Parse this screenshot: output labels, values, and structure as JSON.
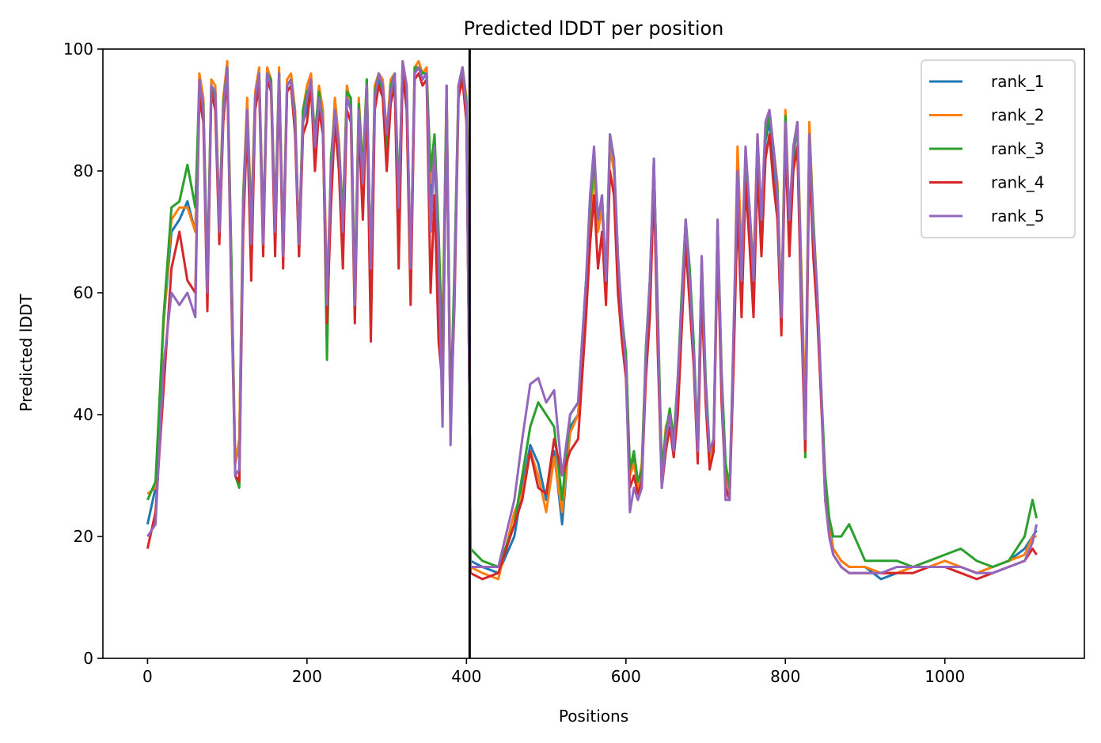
{
  "chart_data": {
    "type": "line",
    "title": "Predicted lDDT per position",
    "xlabel": "Positions",
    "ylabel": "Predicted lDDT",
    "xlim": [
      -56,
      1175
    ],
    "ylim": [
      0,
      100
    ],
    "xticks": [
      0,
      200,
      400,
      600,
      800,
      1000
    ],
    "yticks": [
      0,
      20,
      40,
      60,
      80,
      100
    ],
    "grid": false,
    "legend": "top-right",
    "vertical_line_x": 404,
    "x": [
      0,
      10,
      20,
      30,
      40,
      50,
      60,
      65,
      70,
      75,
      80,
      85,
      90,
      95,
      100,
      105,
      110,
      115,
      120,
      125,
      130,
      135,
      140,
      145,
      150,
      155,
      160,
      165,
      170,
      175,
      180,
      185,
      190,
      195,
      200,
      205,
      210,
      215,
      220,
      225,
      230,
      235,
      240,
      245,
      250,
      255,
      260,
      265,
      270,
      275,
      280,
      285,
      290,
      295,
      300,
      305,
      310,
      315,
      320,
      325,
      330,
      335,
      340,
      345,
      350,
      355,
      360,
      365,
      370,
      375,
      380,
      385,
      390,
      395,
      400,
      404,
      405,
      420,
      440,
      460,
      470,
      480,
      490,
      500,
      510,
      520,
      530,
      540,
      550,
      555,
      560,
      565,
      570,
      575,
      580,
      585,
      590,
      595,
      600,
      605,
      610,
      615,
      620,
      625,
      630,
      635,
      640,
      645,
      650,
      655,
      660,
      665,
      670,
      675,
      680,
      685,
      690,
      695,
      700,
      705,
      710,
      715,
      720,
      725,
      730,
      735,
      740,
      745,
      750,
      755,
      760,
      765,
      770,
      775,
      780,
      785,
      790,
      795,
      800,
      805,
      810,
      815,
      820,
      825,
      830,
      835,
      840,
      845,
      850,
      855,
      860,
      870,
      880,
      900,
      920,
      940,
      960,
      980,
      1000,
      1020,
      1040,
      1060,
      1080,
      1100,
      1110,
      1115
    ],
    "series": [
      {
        "name": "rank_1",
        "color": "#1f77b4",
        "values": [
          22,
          28,
          55,
          70,
          72,
          75,
          70,
          94,
          90,
          60,
          94,
          92,
          70,
          90,
          97,
          65,
          32,
          35,
          75,
          90,
          70,
          92,
          95,
          68,
          96,
          94,
          70,
          96,
          65,
          94,
          95,
          88,
          66,
          88,
          90,
          95,
          84,
          92,
          88,
          58,
          78,
          90,
          82,
          70,
          92,
          90,
          58,
          90,
          78,
          94,
          60,
          92,
          95,
          93,
          84,
          93,
          95,
          72,
          97,
          92,
          62,
          96,
          97,
          95,
          96,
          75,
          82,
          65,
          45,
          92,
          38,
          62,
          93,
          96,
          90,
          40,
          16,
          15,
          14,
          20,
          28,
          35,
          32,
          26,
          34,
          22,
          38,
          40,
          60,
          72,
          80,
          70,
          75,
          60,
          84,
          80,
          65,
          55,
          50,
          30,
          33,
          28,
          30,
          50,
          60,
          82,
          55,
          30,
          36,
          40,
          35,
          45,
          58,
          72,
          62,
          50,
          34,
          65,
          45,
          33,
          35,
          70,
          45,
          30,
          27,
          50,
          78,
          60,
          80,
          72,
          60,
          84,
          70,
          85,
          88,
          82,
          75,
          55,
          88,
          70,
          82,
          88,
          60,
          38,
          84,
          70,
          58,
          42,
          28,
          22,
          18,
          16,
          15,
          15,
          13,
          14,
          15,
          15,
          15,
          15,
          14,
          15,
          16,
          18,
          20,
          21
        ]
      },
      {
        "name": "rank_2",
        "color": "#ff7f0e",
        "values": [
          27,
          28,
          55,
          72,
          74,
          74,
          70,
          96,
          92,
          62,
          95,
          94,
          72,
          92,
          98,
          66,
          32,
          36,
          76,
          92,
          72,
          93,
          97,
          70,
          97,
          95,
          72,
          97,
          68,
          95,
          96,
          90,
          68,
          90,
          94,
          96,
          85,
          94,
          90,
          60,
          80,
          92,
          85,
          72,
          94,
          91,
          60,
          92,
          80,
          95,
          62,
          94,
          96,
          95,
          86,
          95,
          96,
          74,
          98,
          94,
          64,
          97,
          98,
          96,
          97,
          78,
          84,
          68,
          52,
          94,
          40,
          62,
          94,
          97,
          92,
          41,
          15,
          14,
          13,
          24,
          27,
          34,
          30,
          24,
          33,
          24,
          37,
          40,
          60,
          72,
          80,
          70,
          74,
          60,
          84,
          80,
          64,
          55,
          50,
          30,
          32,
          28,
          32,
          50,
          60,
          80,
          55,
          30,
          38,
          40,
          35,
          44,
          58,
          70,
          62,
          50,
          33,
          64,
          44,
          32,
          35,
          70,
          46,
          31,
          26,
          52,
          84,
          66,
          82,
          74,
          64,
          86,
          72,
          87,
          90,
          84,
          78,
          57,
          90,
          72,
          84,
          88,
          64,
          40,
          88,
          72,
          60,
          44,
          28,
          21,
          18,
          16,
          15,
          15,
          14,
          14,
          15,
          15,
          16,
          15,
          14,
          15,
          16,
          17,
          20,
          20
        ]
      },
      {
        "name": "rank_3",
        "color": "#2ca02c",
        "values": [
          26,
          29,
          56,
          74,
          75,
          81,
          74,
          94,
          91,
          63,
          94,
          92,
          72,
          91,
          97,
          66,
          30,
          28,
          76,
          90,
          71,
          92,
          96,
          70,
          96,
          95,
          71,
          96,
          67,
          94,
          95,
          89,
          68,
          90,
          93,
          94,
          86,
          93,
          88,
          49,
          82,
          90,
          84,
          72,
          93,
          92,
          60,
          91,
          80,
          95,
          63,
          93,
          96,
          93,
          84,
          94,
          96,
          76,
          97,
          93,
          63,
          97,
          97,
          96,
          96,
          80,
          86,
          70,
          50,
          94,
          40,
          64,
          94,
          97,
          91,
          41,
          18,
          16,
          15,
          22,
          30,
          38,
          42,
          40,
          38,
          26,
          40,
          42,
          62,
          74,
          82,
          72,
          76,
          62,
          86,
          82,
          66,
          56,
          50,
          31,
          34,
          29,
          31,
          51,
          62,
          81,
          57,
          31,
          37,
          41,
          36,
          46,
          60,
          72,
          64,
          52,
          35,
          66,
          46,
          34,
          36,
          72,
          47,
          32,
          28,
          52,
          80,
          62,
          82,
          74,
          62,
          85,
          72,
          86,
          89,
          84,
          77,
          56,
          89,
          71,
          83,
          87,
          62,
          33,
          86,
          72,
          59,
          44,
          30,
          23,
          20,
          20,
          22,
          16,
          16,
          16,
          15,
          16,
          17,
          18,
          16,
          15,
          16,
          20,
          26,
          23
        ]
      },
      {
        "name": "rank_4",
        "color": "#d62728",
        "values": [
          18,
          24,
          44,
          64,
          70,
          62,
          60,
          92,
          88,
          57,
          93,
          90,
          68,
          88,
          96,
          60,
          30,
          29,
          70,
          88,
          62,
          90,
          94,
          66,
          95,
          93,
          66,
          95,
          64,
          93,
          94,
          86,
          66,
          86,
          88,
          94,
          80,
          90,
          86,
          55,
          74,
          88,
          80,
          64,
          90,
          88,
          55,
          88,
          72,
          92,
          52,
          90,
          94,
          92,
          80,
          91,
          94,
          64,
          96,
          90,
          58,
          95,
          96,
          94,
          95,
          60,
          76,
          52,
          45,
          90,
          38,
          58,
          92,
          95,
          88,
          40,
          14,
          13,
          14,
          22,
          26,
          34,
          28,
          27,
          36,
          30,
          34,
          36,
          56,
          68,
          76,
          64,
          70,
          58,
          80,
          76,
          60,
          52,
          46,
          28,
          30,
          27,
          29,
          46,
          56,
          78,
          50,
          28,
          34,
          38,
          33,
          40,
          54,
          68,
          58,
          48,
          32,
          60,
          42,
          31,
          34,
          68,
          42,
          28,
          26,
          48,
          74,
          56,
          78,
          68,
          56,
          80,
          66,
          82,
          86,
          78,
          72,
          53,
          85,
          66,
          80,
          84,
          56,
          34,
          82,
          66,
          56,
          42,
          26,
          20,
          17,
          15,
          14,
          14,
          14,
          14,
          14,
          15,
          15,
          14,
          13,
          14,
          15,
          16,
          18,
          17
        ]
      },
      {
        "name": "rank_5",
        "color": "#9467bd",
        "values": [
          20,
          22,
          48,
          60,
          58,
          60,
          56,
          95,
          90,
          60,
          94,
          93,
          70,
          90,
          97,
          62,
          30,
          31,
          74,
          90,
          68,
          92,
          96,
          68,
          96,
          94,
          70,
          96,
          66,
          94,
          95,
          88,
          68,
          88,
          92,
          95,
          84,
          92,
          88,
          58,
          80,
          90,
          84,
          70,
          92,
          90,
          58,
          90,
          78,
          94,
          64,
          92,
          96,
          94,
          86,
          93,
          96,
          74,
          98,
          94,
          64,
          96,
          97,
          95,
          96,
          70,
          84,
          66,
          38,
          94,
          35,
          60,
          94,
          97,
          90,
          40,
          15,
          15,
          15,
          26,
          36,
          45,
          46,
          42,
          44,
          30,
          40,
          42,
          62,
          76,
          84,
          72,
          76,
          62,
          86,
          82,
          66,
          56,
          48,
          24,
          28,
          26,
          28,
          50,
          62,
          82,
          55,
          28,
          36,
          40,
          34,
          46,
          58,
          72,
          62,
          50,
          34,
          66,
          44,
          34,
          36,
          72,
          46,
          26,
          26,
          54,
          80,
          62,
          84,
          74,
          62,
          86,
          72,
          88,
          90,
          84,
          76,
          56,
          88,
          72,
          84,
          88,
          60,
          36,
          86,
          70,
          60,
          44,
          26,
          20,
          17,
          15,
          14,
          14,
          14,
          15,
          15,
          15,
          15,
          15,
          14,
          14,
          15,
          16,
          19,
          22
        ]
      }
    ]
  }
}
